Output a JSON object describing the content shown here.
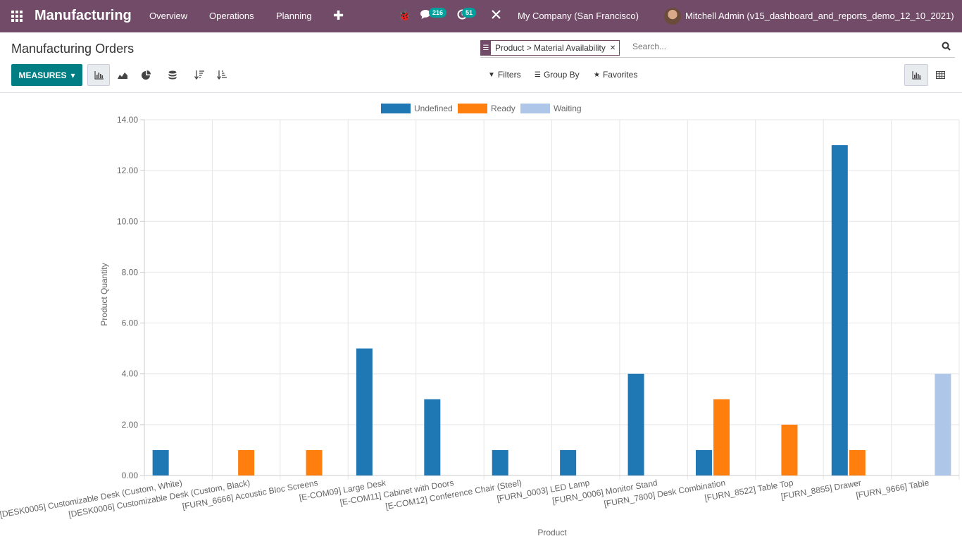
{
  "navbar": {
    "app_name": "Manufacturing",
    "menus": [
      "Overview",
      "Operations",
      "Planning"
    ],
    "messages_count": "216",
    "activities_count": "51",
    "company": "My Company (San Francisco)",
    "user": "Mitchell Admin (v15_dashboard_and_reports_demo_12_10_2021)",
    "brand_color": "#714b67"
  },
  "control_panel": {
    "title": "Manufacturing Orders",
    "facet": "Product > Material Availability",
    "search_placeholder": "Search...",
    "measures_label": "MEASURES",
    "filters_label": "Filters",
    "groupby_label": "Group By",
    "favorites_label": "Favorites"
  },
  "chart_data": {
    "type": "bar",
    "xlabel": "Product",
    "ylabel": "Product Quantity",
    "ylim": [
      0,
      14
    ],
    "yticks": [
      "0.00",
      "2.00",
      "4.00",
      "6.00",
      "8.00",
      "10.00",
      "12.00",
      "14.00"
    ],
    "legend_position": "top",
    "grid": true,
    "categories": [
      "[DESK0005] Customizable Desk (Custom, White)",
      "[DESK0006] Customizable Desk (Custom, Black)",
      "[FURN_6666] Acoustic Bloc Screens",
      "[E-COM09] Large Desk",
      "[E-COM11] Cabinet with Doors",
      "[E-COM12] Conference Chair (Steel)",
      "[FURN_0003] LED Lamp",
      "[FURN_0006] Monitor Stand",
      "[FURN_7800] Desk Combination",
      "[FURN_8522] Table Top",
      "[FURN_8855] Drawer",
      "[FURN_9666] Table"
    ],
    "series": [
      {
        "name": "Undefined",
        "color": "#1f77b4",
        "values": [
          1,
          0,
          0,
          5,
          3,
          1,
          1,
          4,
          1,
          0,
          13,
          0
        ]
      },
      {
        "name": "Ready",
        "color": "#ff7f0e",
        "values": [
          0,
          1,
          1,
          0,
          0,
          0,
          0,
          0,
          3,
          2,
          1,
          0
        ]
      },
      {
        "name": "Waiting",
        "color": "#aec7e8",
        "values": [
          0,
          0,
          0,
          0,
          0,
          0,
          0,
          0,
          0,
          0,
          0,
          4
        ]
      }
    ]
  }
}
